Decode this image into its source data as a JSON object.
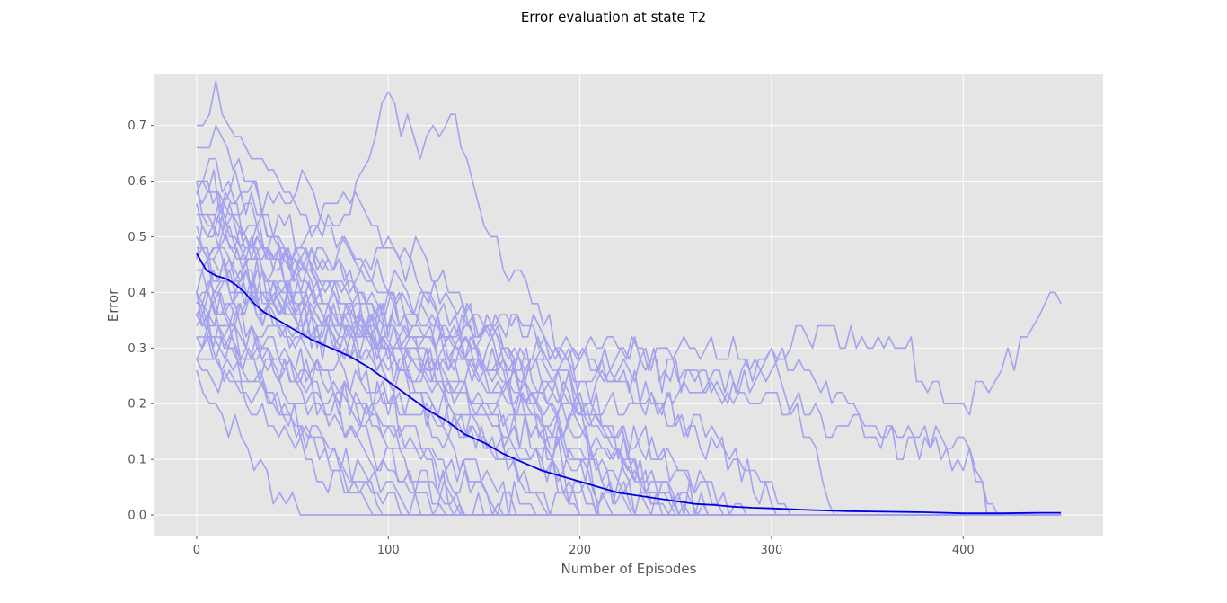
{
  "chart_data": {
    "type": "line",
    "title": "Error evaluation at state T2",
    "xlabel": "Number of Episodes",
    "ylabel": "Error",
    "xlim": [
      -22,
      473
    ],
    "ylim": [
      -0.037,
      0.793
    ],
    "xticks": [
      0,
      100,
      200,
      300,
      400
    ],
    "yticks": [
      0.0,
      0.1,
      0.2,
      0.3,
      0.4,
      0.5,
      0.6,
      0.7
    ],
    "xtick_labels": [
      "0",
      "100",
      "200",
      "300",
      "400"
    ],
    "ytick_labels": [
      "0.0",
      "0.1",
      "0.2",
      "0.3",
      "0.4",
      "0.5",
      "0.6",
      "0.7"
    ],
    "grid": true,
    "legend": "none",
    "colors": {
      "runs": "#a3a2ef",
      "mean": "#0000e6",
      "plot_background": "#e5e5e5",
      "grid": "#ffffff"
    },
    "mean_series": {
      "x": [
        0,
        5,
        10,
        15,
        20,
        25,
        30,
        35,
        40,
        45,
        50,
        60,
        70,
        80,
        90,
        100,
        110,
        120,
        130,
        140,
        150,
        160,
        170,
        180,
        190,
        200,
        210,
        220,
        230,
        240,
        250,
        260,
        270,
        280,
        290,
        300,
        320,
        340,
        360,
        380,
        400,
        420,
        440,
        451
      ],
      "values": [
        0.47,
        0.44,
        0.43,
        0.425,
        0.415,
        0.4,
        0.38,
        0.365,
        0.355,
        0.345,
        0.335,
        0.315,
        0.3,
        0.285,
        0.265,
        0.24,
        0.215,
        0.19,
        0.17,
        0.145,
        0.13,
        0.11,
        0.095,
        0.08,
        0.07,
        0.06,
        0.05,
        0.04,
        0.035,
        0.03,
        0.025,
        0.02,
        0.018,
        0.015,
        0.013,
        0.012,
        0.009,
        0.007,
        0.006,
        0.005,
        0.003,
        0.003,
        0.004,
        0.004
      ]
    },
    "run_series": [
      {
        "x": [
          0,
          10,
          20,
          30,
          40,
          60,
          80,
          100,
          110,
          120,
          135,
          150,
          170,
          190,
          200,
          220,
          240,
          260,
          280,
          300,
          310,
          330,
          350,
          370,
          390,
          400,
          410,
          420,
          430,
          440,
          448,
          451
        ],
        "values": [
          0.6,
          0.62,
          0.55,
          0.58,
          0.5,
          0.45,
          0.48,
          0.42,
          0.4,
          0.38,
          0.36,
          0.35,
          0.33,
          0.3,
          0.28,
          0.3,
          0.28,
          0.29,
          0.3,
          0.27,
          0.32,
          0.33,
          0.31,
          0.3,
          0.2,
          0.18,
          0.22,
          0.26,
          0.3,
          0.36,
          0.42,
          0.38
        ]
      },
      {
        "x": [
          0,
          10,
          20,
          40,
          60,
          80,
          90,
          100,
          110,
          120,
          130,
          135,
          150,
          160,
          175,
          190,
          200,
          210
        ],
        "values": [
          0.7,
          0.76,
          0.68,
          0.6,
          0.52,
          0.56,
          0.65,
          0.74,
          0.7,
          0.66,
          0.7,
          0.72,
          0.55,
          0.45,
          0.4,
          0.3,
          0.2,
          0.0
        ]
      },
      {
        "x": [
          0,
          20,
          40,
          60,
          70,
          80,
          100,
          120,
          140,
          160,
          180,
          200
        ],
        "values": [
          0.48,
          0.55,
          0.52,
          0.5,
          0.56,
          0.58,
          0.5,
          0.45,
          0.38,
          0.3,
          0.15,
          0.0
        ]
      },
      {
        "x": [
          0,
          15,
          30,
          50,
          70,
          90,
          110,
          130,
          150,
          170,
          190,
          210,
          230,
          250,
          270,
          290,
          300,
          310,
          320,
          330,
          336
        ],
        "values": [
          0.42,
          0.5,
          0.45,
          0.48,
          0.42,
          0.38,
          0.4,
          0.36,
          0.33,
          0.35,
          0.3,
          0.28,
          0.3,
          0.25,
          0.24,
          0.26,
          0.28,
          0.2,
          0.12,
          0.05,
          0.0
        ]
      },
      {
        "x": [
          0,
          20,
          40,
          60,
          80,
          100,
          120,
          140,
          160,
          180,
          200,
          220,
          240,
          260,
          280,
          300,
          320,
          340,
          360,
          380,
          400,
          410,
          418
        ],
        "values": [
          0.55,
          0.6,
          0.5,
          0.45,
          0.42,
          0.38,
          0.36,
          0.3,
          0.28,
          0.26,
          0.22,
          0.25,
          0.2,
          0.24,
          0.22,
          0.28,
          0.26,
          0.18,
          0.16,
          0.14,
          0.12,
          0.06,
          0.0
        ]
      },
      {
        "x": [
          0,
          10,
          25,
          40,
          55,
          70,
          85,
          100,
          115,
          130,
          145,
          160,
          175,
          190,
          205,
          220,
          235,
          250
        ],
        "values": [
          0.65,
          0.7,
          0.6,
          0.55,
          0.6,
          0.5,
          0.45,
          0.5,
          0.42,
          0.38,
          0.35,
          0.3,
          0.26,
          0.22,
          0.18,
          0.12,
          0.06,
          0.0
        ]
      },
      {
        "x": [
          0,
          10,
          20,
          30,
          40,
          50,
          54
        ],
        "values": [
          0.26,
          0.2,
          0.15,
          0.1,
          0.05,
          0.02,
          0.0
        ]
      },
      {
        "x": [
          0,
          15,
          30,
          45,
          60,
          75,
          90,
          105,
          120
        ],
        "values": [
          0.35,
          0.3,
          0.26,
          0.2,
          0.15,
          0.1,
          0.06,
          0.02,
          0.0
        ]
      },
      {
        "x": [
          0,
          20,
          40,
          60,
          80,
          100,
          120,
          140,
          160,
          180,
          200,
          220,
          240,
          260,
          275
        ],
        "values": [
          0.4,
          0.38,
          0.36,
          0.33,
          0.3,
          0.32,
          0.28,
          0.3,
          0.26,
          0.24,
          0.2,
          0.16,
          0.12,
          0.06,
          0.0
        ]
      },
      {
        "x": [
          0,
          20,
          40,
          60,
          80,
          100,
          120,
          140,
          160
        ],
        "values": [
          0.3,
          0.35,
          0.28,
          0.24,
          0.2,
          0.16,
          0.1,
          0.05,
          0.0
        ]
      },
      {
        "x": [
          0,
          15,
          30,
          50,
          70,
          90,
          110,
          130,
          150,
          170,
          190,
          210,
          230
        ],
        "values": [
          0.5,
          0.46,
          0.44,
          0.4,
          0.42,
          0.36,
          0.32,
          0.3,
          0.25,
          0.2,
          0.12,
          0.05,
          0.0
        ]
      },
      {
        "x": [
          0,
          20,
          40,
          60,
          80,
          100,
          120,
          140
        ],
        "values": [
          0.58,
          0.5,
          0.44,
          0.36,
          0.28,
          0.2,
          0.1,
          0.0
        ]
      },
      {
        "x": [
          0,
          25,
          50,
          75,
          100,
          125,
          150,
          175,
          200,
          225,
          250,
          275,
          300,
          305
        ],
        "values": [
          0.36,
          0.38,
          0.34,
          0.36,
          0.3,
          0.32,
          0.28,
          0.3,
          0.25,
          0.22,
          0.18,
          0.12,
          0.03,
          0.0
        ]
      },
      {
        "x": [
          0,
          10,
          20,
          30,
          40,
          55,
          70,
          85,
          100
        ],
        "values": [
          0.32,
          0.3,
          0.28,
          0.24,
          0.2,
          0.15,
          0.1,
          0.05,
          0.0
        ]
      },
      {
        "x": [
          0,
          20,
          40,
          60,
          80,
          100,
          120,
          140,
          160,
          180,
          200,
          220,
          240,
          260,
          280,
          300,
          320,
          340,
          360,
          380,
          400,
          410,
          415
        ],
        "values": [
          0.45,
          0.42,
          0.4,
          0.38,
          0.36,
          0.35,
          0.33,
          0.32,
          0.3,
          0.28,
          0.28,
          0.26,
          0.26,
          0.24,
          0.22,
          0.2,
          0.18,
          0.16,
          0.14,
          0.12,
          0.1,
          0.05,
          0.0
        ]
      },
      {
        "x": [
          0,
          15,
          30,
          45,
          60,
          75,
          90,
          105,
          120,
          135,
          150,
          165,
          180,
          190
        ],
        "values": [
          0.62,
          0.56,
          0.5,
          0.46,
          0.42,
          0.38,
          0.34,
          0.28,
          0.22,
          0.18,
          0.12,
          0.08,
          0.03,
          0.0
        ]
      },
      {
        "x": [
          0,
          20,
          40,
          60,
          80,
          100,
          120,
          140,
          160,
          180,
          200,
          220,
          240,
          260,
          270
        ],
        "values": [
          0.38,
          0.34,
          0.3,
          0.26,
          0.22,
          0.2,
          0.18,
          0.16,
          0.14,
          0.12,
          0.1,
          0.08,
          0.05,
          0.02,
          0.0
        ]
      },
      {
        "x": [
          0,
          20,
          40,
          60,
          80,
          100,
          120,
          140,
          160,
          180,
          200,
          220,
          240,
          250
        ],
        "values": [
          0.52,
          0.48,
          0.44,
          0.46,
          0.42,
          0.38,
          0.34,
          0.3,
          0.26,
          0.22,
          0.18,
          0.1,
          0.04,
          0.0
        ]
      },
      {
        "x": [
          0,
          10,
          25,
          40,
          55,
          70,
          85,
          100,
          115,
          130,
          145,
          160,
          170
        ],
        "values": [
          0.28,
          0.26,
          0.3,
          0.26,
          0.22,
          0.2,
          0.18,
          0.15,
          0.12,
          0.08,
          0.05,
          0.02,
          0.0
        ]
      },
      {
        "x": [
          0,
          20,
          40,
          60,
          80,
          100,
          120,
          140,
          160,
          180,
          200,
          220,
          240,
          260,
          280,
          300,
          310
        ],
        "values": [
          0.44,
          0.42,
          0.4,
          0.38,
          0.35,
          0.33,
          0.3,
          0.28,
          0.26,
          0.24,
          0.22,
          0.2,
          0.18,
          0.15,
          0.1,
          0.04,
          0.0
        ]
      },
      {
        "x": [
          0,
          25,
          50,
          75,
          100,
          125,
          150,
          175,
          200
        ],
        "values": [
          0.56,
          0.5,
          0.44,
          0.38,
          0.3,
          0.22,
          0.14,
          0.06,
          0.0
        ]
      },
      {
        "x": [
          0,
          15,
          30,
          45,
          60,
          75,
          90,
          105,
          120,
          135,
          150
        ],
        "values": [
          0.34,
          0.3,
          0.27,
          0.24,
          0.2,
          0.16,
          0.12,
          0.08,
          0.05,
          0.02,
          0.0
        ]
      },
      {
        "x": [
          0,
          20,
          40,
          60,
          80,
          100,
          120,
          140,
          160,
          180,
          200,
          220,
          235
        ],
        "values": [
          0.46,
          0.44,
          0.4,
          0.36,
          0.34,
          0.3,
          0.26,
          0.22,
          0.18,
          0.14,
          0.1,
          0.05,
          0.0
        ]
      },
      {
        "x": [
          0,
          20,
          40,
          60,
          80,
          100,
          110
        ],
        "values": [
          0.3,
          0.26,
          0.2,
          0.14,
          0.08,
          0.03,
          0.0
        ]
      },
      {
        "x": [
          0,
          20,
          40,
          60,
          80,
          100,
          120,
          140,
          160,
          180,
          200,
          220,
          240,
          260
        ],
        "values": [
          0.5,
          0.45,
          0.4,
          0.37,
          0.34,
          0.32,
          0.28,
          0.25,
          0.22,
          0.18,
          0.14,
          0.09,
          0.04,
          0.0
        ]
      },
      {
        "x": [
          0,
          20,
          40,
          60,
          80,
          100,
          120,
          130
        ],
        "values": [
          0.36,
          0.32,
          0.28,
          0.22,
          0.16,
          0.08,
          0.02,
          0.0
        ]
      },
      {
        "x": [
          0,
          25,
          50,
          75,
          100,
          125,
          150,
          175,
          200,
          225,
          250,
          275,
          290
        ],
        "values": [
          0.42,
          0.4,
          0.37,
          0.34,
          0.31,
          0.28,
          0.25,
          0.21,
          0.17,
          0.13,
          0.08,
          0.03,
          0.0
        ]
      },
      {
        "x": [
          0,
          20,
          40,
          60,
          80,
          100,
          120,
          140,
          160,
          180
        ],
        "values": [
          0.6,
          0.52,
          0.46,
          0.4,
          0.32,
          0.26,
          0.18,
          0.1,
          0.04,
          0.0
        ]
      },
      {
        "x": [
          0,
          20,
          40,
          60,
          80,
          100,
          120,
          140,
          160,
          180,
          200,
          220
        ],
        "values": [
          0.33,
          0.31,
          0.29,
          0.27,
          0.25,
          0.22,
          0.19,
          0.16,
          0.12,
          0.08,
          0.03,
          0.0
        ]
      },
      {
        "x": [
          0,
          20,
          40,
          60,
          80,
          100,
          120,
          140,
          160,
          180,
          200,
          210
        ],
        "values": [
          0.54,
          0.5,
          0.46,
          0.42,
          0.38,
          0.33,
          0.28,
          0.22,
          0.15,
          0.09,
          0.03,
          0.0
        ]
      },
      {
        "x": [
          0,
          20,
          40,
          60,
          80,
          95
        ],
        "values": [
          0.28,
          0.22,
          0.16,
          0.1,
          0.04,
          0.0
        ]
      },
      {
        "x": [
          0,
          25,
          50,
          75,
          100,
          125,
          150,
          175,
          200,
          225,
          250,
          270
        ],
        "values": [
          0.4,
          0.38,
          0.35,
          0.32,
          0.29,
          0.26,
          0.22,
          0.18,
          0.14,
          0.09,
          0.04,
          0.0
        ]
      },
      {
        "x": [
          0,
          20,
          40,
          60,
          80,
          100,
          120,
          145
        ],
        "values": [
          0.48,
          0.42,
          0.36,
          0.28,
          0.2,
          0.12,
          0.05,
          0.0
        ]
      },
      {
        "x": [
          0,
          20,
          40,
          60,
          80,
          100,
          120,
          140,
          160,
          180,
          200,
          220,
          240,
          255
        ],
        "values": [
          0.38,
          0.36,
          0.34,
          0.32,
          0.3,
          0.27,
          0.24,
          0.21,
          0.17,
          0.13,
          0.09,
          0.05,
          0.02,
          0.0
        ]
      }
    ]
  }
}
